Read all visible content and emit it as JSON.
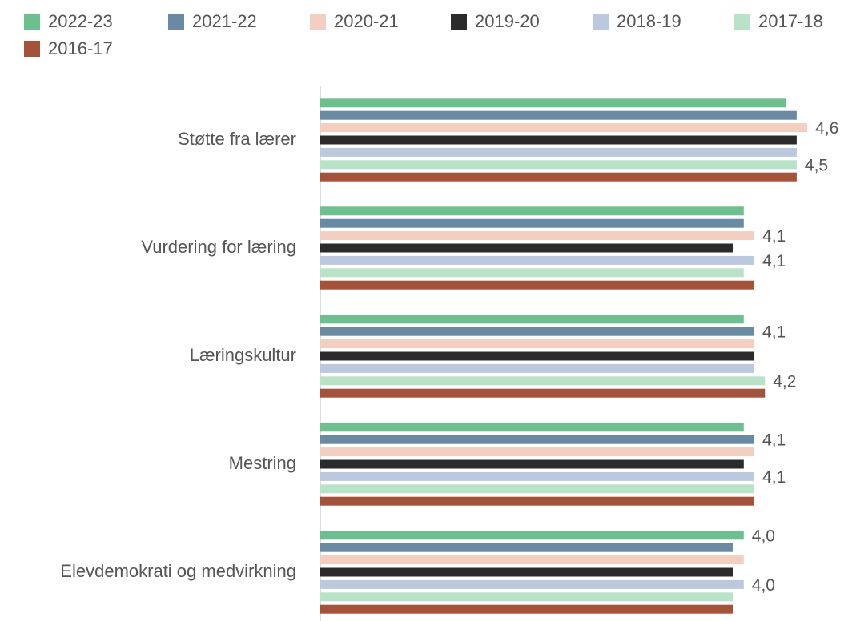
{
  "chart_data": {
    "type": "hbar",
    "categories": [
      "Støtte fra lærer",
      "Vurdering for læring",
      "Læringskultur",
      "Mestring",
      "Elevdemokrati og medvirkning"
    ],
    "series": [
      {
        "name": "2022-23",
        "color": "#6dbf8f",
        "values": [
          4.4,
          4.0,
          4.0,
          4.0,
          4.0
        ],
        "value_labels": [
          null,
          null,
          null,
          null,
          "4,0"
        ]
      },
      {
        "name": "2021-22",
        "color": "#6a8aa3",
        "values": [
          4.5,
          4.0,
          4.1,
          4.1,
          3.9
        ],
        "value_labels": [
          null,
          null,
          "4,1",
          "4,1",
          null
        ]
      },
      {
        "name": "2020-21",
        "color": "#f2cfc0",
        "values": [
          4.6,
          4.1,
          4.1,
          4.1,
          4.0
        ],
        "value_labels": [
          "4,6",
          "4,1",
          null,
          null,
          null
        ]
      },
      {
        "name": "2019-20",
        "color": "#2b2b2b",
        "values": [
          4.5,
          3.9,
          4.1,
          4.0,
          3.9
        ],
        "value_labels": [
          null,
          null,
          null,
          null,
          null
        ]
      },
      {
        "name": "2018-19",
        "color": "#bcc8de",
        "values": [
          4.5,
          4.1,
          4.1,
          4.1,
          4.0
        ],
        "value_labels": [
          null,
          "4,1",
          null,
          "4,1",
          "4,0"
        ]
      },
      {
        "name": "2017-18",
        "color": "#b8e3c9",
        "values": [
          4.5,
          4.0,
          4.2,
          4.1,
          3.9
        ],
        "value_labels": [
          "4,5",
          null,
          "4,2",
          null,
          null
        ]
      },
      {
        "name": "2016-17",
        "color": "#a4523a",
        "values": [
          4.5,
          4.1,
          4.2,
          4.1,
          3.9
        ],
        "value_labels": [
          null,
          null,
          null,
          null,
          null
        ]
      }
    ],
    "xlim": [
      0,
      5
    ],
    "legend": "top"
  }
}
